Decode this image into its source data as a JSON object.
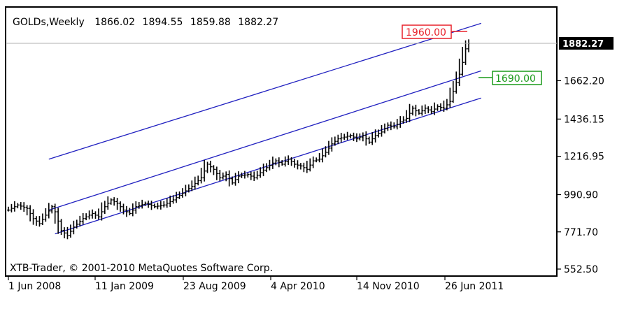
{
  "chart_data": {
    "type": "bar",
    "style": "ohlc-weekly",
    "header": {
      "symbol": "GOLDs,Weekly",
      "open": "1866.02",
      "high": "1894.55",
      "low": "1859.88",
      "close": "1882.27"
    },
    "copyright": "XTB-Trader, © 2001-2010 MetaQuotes Software Corp.",
    "x_labels": [
      "1 Jun 2008",
      "11 Jan 2009",
      "23 Aug 2009",
      "4 Apr 2010",
      "14 Nov 2010",
      "26 Jun 2011"
    ],
    "y_ticks": [
      "1662.20",
      "1436.15",
      "1216.95",
      "990.90",
      "771.70",
      "552.50"
    ],
    "ylim": [
      552.5,
      1882.27
    ],
    "last_price": {
      "label": "1882.27",
      "value": 1882.27
    },
    "series_points": [
      {
        "w": 0,
        "v": 900
      },
      {
        "w": 3,
        "v": 930
      },
      {
        "w": 6,
        "v": 910
      },
      {
        "w": 8,
        "v": 850
      },
      {
        "w": 10,
        "v": 820
      },
      {
        "w": 12,
        "v": 870
      },
      {
        "w": 14,
        "v": 920
      },
      {
        "w": 15,
        "v": 890
      },
      {
        "w": 17,
        "v": 780
      },
      {
        "w": 19,
        "v": 750
      },
      {
        "w": 21,
        "v": 800
      },
      {
        "w": 24,
        "v": 850
      },
      {
        "w": 27,
        "v": 880
      },
      {
        "w": 29,
        "v": 860
      },
      {
        "w": 31,
        "v": 920
      },
      {
        "w": 33,
        "v": 960
      },
      {
        "w": 35,
        "v": 940
      },
      {
        "w": 37,
        "v": 900
      },
      {
        "w": 39,
        "v": 880
      },
      {
        "w": 41,
        "v": 920
      },
      {
        "w": 44,
        "v": 940
      },
      {
        "w": 47,
        "v": 920
      },
      {
        "w": 50,
        "v": 930
      },
      {
        "w": 53,
        "v": 960
      },
      {
        "w": 56,
        "v": 1000
      },
      {
        "w": 59,
        "v": 1040
      },
      {
        "w": 62,
        "v": 1090
      },
      {
        "w": 64,
        "v": 1170
      },
      {
        "w": 66,
        "v": 1140
      },
      {
        "w": 68,
        "v": 1090
      },
      {
        "w": 70,
        "v": 1110
      },
      {
        "w": 72,
        "v": 1060
      },
      {
        "w": 74,
        "v": 1100
      },
      {
        "w": 77,
        "v": 1110
      },
      {
        "w": 79,
        "v": 1090
      },
      {
        "w": 81,
        "v": 1120
      },
      {
        "w": 83,
        "v": 1150
      },
      {
        "w": 86,
        "v": 1190
      },
      {
        "w": 88,
        "v": 1170
      },
      {
        "w": 90,
        "v": 1200
      },
      {
        "w": 92,
        "v": 1170
      },
      {
        "w": 94,
        "v": 1160
      },
      {
        "w": 96,
        "v": 1140
      },
      {
        "w": 98,
        "v": 1190
      },
      {
        "w": 100,
        "v": 1200
      },
      {
        "w": 102,
        "v": 1240
      },
      {
        "w": 104,
        "v": 1290
      },
      {
        "w": 106,
        "v": 1320
      },
      {
        "w": 108,
        "v": 1330
      },
      {
        "w": 110,
        "v": 1340
      },
      {
        "w": 112,
        "v": 1320
      },
      {
        "w": 114,
        "v": 1340
      },
      {
        "w": 116,
        "v": 1300
      },
      {
        "w": 118,
        "v": 1340
      },
      {
        "w": 120,
        "v": 1360
      },
      {
        "w": 122,
        "v": 1400
      },
      {
        "w": 124,
        "v": 1390
      },
      {
        "w": 126,
        "v": 1420
      },
      {
        "w": 128,
        "v": 1440
      },
      {
        "w": 130,
        "v": 1500
      },
      {
        "w": 132,
        "v": 1470
      },
      {
        "w": 134,
        "v": 1500
      },
      {
        "w": 136,
        "v": 1480
      },
      {
        "w": 138,
        "v": 1510
      },
      {
        "w": 140,
        "v": 1500
      },
      {
        "w": 142,
        "v": 1540
      },
      {
        "w": 143,
        "v": 1600
      },
      {
        "w": 144,
        "v": 1650
      },
      {
        "w": 145,
        "v": 1700
      },
      {
        "w": 146,
        "v": 1770
      },
      {
        "w": 147,
        "v": 1850
      },
      {
        "w": 148,
        "v": 1882
      }
    ],
    "annotations": [
      {
        "label": "1960.00",
        "color": "#e8202a",
        "price": 1960.0,
        "anchor_week": 148
      },
      {
        "label": "1690.00",
        "color": "#1a9a1a",
        "price": 1690.0,
        "anchor_week": 150
      }
    ],
    "channel_lines": [
      {
        "name": "upper",
        "from": {
          "w": 13,
          "v": 1200
        },
        "to": {
          "w": 152,
          "v": 2000
        }
      },
      {
        "name": "middle",
        "from": {
          "w": 13,
          "v": 900
        },
        "to": {
          "w": 152,
          "v": 1720
        }
      },
      {
        "name": "lower",
        "from": {
          "w": 15,
          "v": 760
        },
        "to": {
          "w": 152,
          "v": 1560
        }
      }
    ],
    "colors": {
      "bars": "#000000",
      "channels": "#2020c0",
      "axis": "#000000",
      "price_line": "#b0b0b0"
    }
  }
}
